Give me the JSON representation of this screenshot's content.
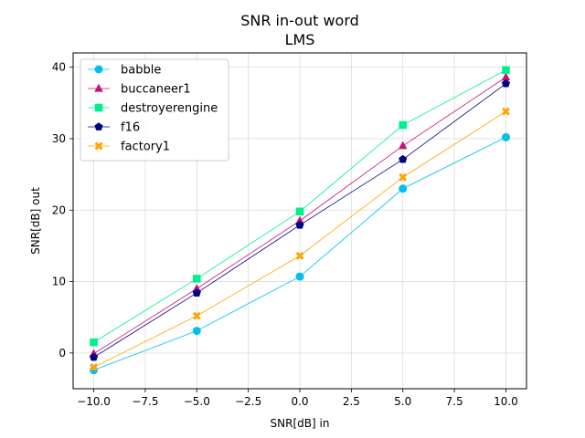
{
  "chart_data": {
    "type": "line",
    "title": "SNR in-out word",
    "subtitle": "LMS",
    "xlabel": "SNR[dB] in",
    "ylabel": "SNR[dB] out",
    "xlim": [
      -11.0,
      11.0
    ],
    "ylim": [
      -5.0,
      42.0
    ],
    "xticks": [
      -10.0,
      -7.5,
      -5.0,
      -2.5,
      0.0,
      2.5,
      5.0,
      7.5,
      10.0
    ],
    "xtick_labels": [
      "−10.0",
      "−7.5",
      "−5.0",
      "−2.5",
      "0.0",
      "2.5",
      "5.0",
      "7.5",
      "10.0"
    ],
    "yticks": [
      0,
      10,
      20,
      30,
      40
    ],
    "ytick_labels": [
      "0",
      "10",
      "20",
      "30",
      "40"
    ],
    "grid": true,
    "legend_position": "top-left",
    "x": [
      -10,
      -5,
      0,
      5,
      10
    ],
    "series": [
      {
        "name": "babble",
        "color": "#00c0f0",
        "marker": "circle",
        "values": [
          -2.4,
          3.1,
          10.7,
          23.0,
          30.2
        ]
      },
      {
        "name": "buccaneer1",
        "color": "#c8107c",
        "marker": "triangle",
        "values": [
          -0.1,
          9.0,
          18.5,
          29.0,
          38.6
        ]
      },
      {
        "name": "destroyerengine",
        "color": "#00f090",
        "marker": "square",
        "values": [
          1.5,
          10.4,
          19.8,
          31.9,
          39.6
        ]
      },
      {
        "name": "f16",
        "color": "#000080",
        "marker": "pentagon",
        "values": [
          -0.6,
          8.4,
          17.9,
          27.1,
          37.7
        ]
      },
      {
        "name": "factory1",
        "color": "#ffa500",
        "marker": "x",
        "values": [
          -2.0,
          5.2,
          13.6,
          24.6,
          33.8
        ]
      }
    ]
  }
}
